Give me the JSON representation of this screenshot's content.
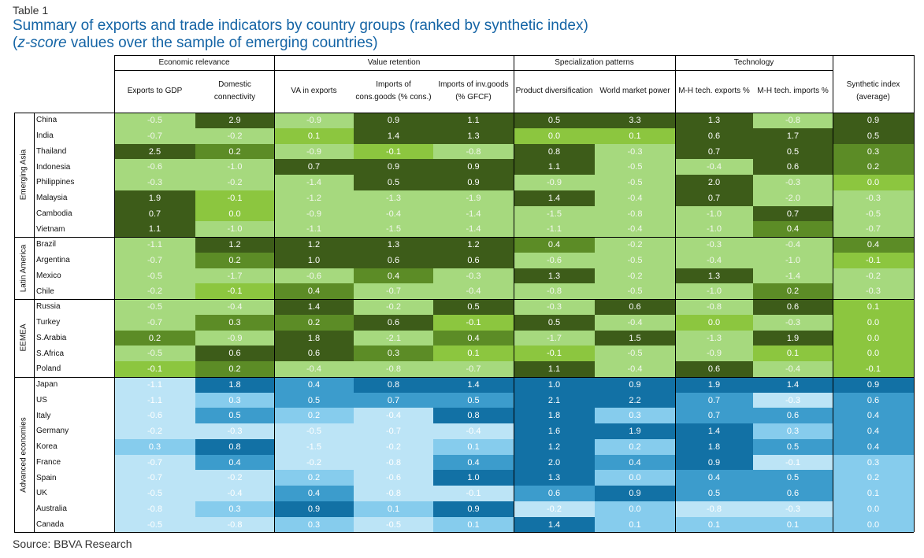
{
  "caption": "Table 1",
  "title_line1": "Summary of exports and trade indicators by country groups (ranked by synthetic index)",
  "title_line2_italic": "z-score",
  "title_line2_rest": " values over the sample of emerging countries)",
  "title_line2_open": "(",
  "source": "Source: BBVA Research",
  "column_groups": [
    "Economic relevance",
    "Value retention",
    "Specialization patterns",
    "Technology"
  ],
  "columns": [
    "Exports to GDP",
    "Domestic connectivity",
    "VA in exports",
    "Imports of cons.goods (% cons.)",
    "Imports of inv.goods (% GFCF)",
    "Product diversification",
    "World market power",
    "M-H tech. exports %",
    "M-H tech. imports %",
    "Synthetic index (average)"
  ],
  "regions": [
    {
      "name": "Emerging Asia",
      "palette": "green",
      "rows": [
        {
          "country": "China",
          "values": [
            "-0.5",
            "2.9",
            "-0.9",
            "0.9",
            "1.1",
            "0.5",
            "3.3",
            "1.3",
            "-0.8",
            "0.9"
          ]
        },
        {
          "country": "India",
          "values": [
            "-0.7",
            "-0.2",
            "0.1",
            "1.4",
            "1.3",
            "0.0",
            "0.1",
            "0.6",
            "1.7",
            "0.5"
          ]
        },
        {
          "country": "Thailand",
          "values": [
            "2.5",
            "0.2",
            "-0.9",
            "-0.1",
            "-0.8",
            "0.8",
            "-0.3",
            "0.7",
            "0.5",
            "0.3"
          ]
        },
        {
          "country": "Indonesia",
          "values": [
            "-0.6",
            "-1.0",
            "0.7",
            "0.9",
            "0.9",
            "1.1",
            "-0.5",
            "-0.4",
            "0.6",
            "0.2"
          ]
        },
        {
          "country": "Philippines",
          "values": [
            "-0.3",
            "-0.2",
            "-1.4",
            "0.5",
            "0.9",
            "-0.9",
            "-0.5",
            "2.0",
            "-0.3",
            "0.0"
          ]
        },
        {
          "country": "Malaysia",
          "values": [
            "1.9",
            "-0.1",
            "-1.2",
            "-1.3",
            "-1.9",
            "1.4",
            "-0.4",
            "0.7",
            "-2.0",
            "-0.3"
          ]
        },
        {
          "country": "Cambodia",
          "values": [
            "0.7",
            "0.0",
            "-0.9",
            "-0.4",
            "-1.4",
            "-1.5",
            "-0.8",
            "-1.0",
            "0.7",
            "-0.5"
          ]
        },
        {
          "country": "Vietnam",
          "values": [
            "1.1",
            "-1.0",
            "-1.1",
            "-1.5",
            "-1.4",
            "-1.1",
            "-0.4",
            "-1.0",
            "0.4",
            "-0.7"
          ]
        }
      ]
    },
    {
      "name": "Latin America",
      "palette": "green",
      "rows": [
        {
          "country": "Brazil",
          "values": [
            "-1.1",
            "1.2",
            "1.2",
            "1.3",
            "1.2",
            "0.4",
            "-0.2",
            "-0.3",
            "-0.4",
            "0.4"
          ]
        },
        {
          "country": "Argentina",
          "values": [
            "-0.7",
            "0.2",
            "1.0",
            "0.6",
            "0.6",
            "-0.6",
            "-0.5",
            "-0.4",
            "-1.0",
            "-0.1"
          ]
        },
        {
          "country": "Mexico",
          "values": [
            "-0.5",
            "-1.7",
            "-0.6",
            "0.4",
            "-0.3",
            "1.3",
            "-0.2",
            "1.3",
            "-1.4",
            "-0.2"
          ]
        },
        {
          "country": "Chile",
          "values": [
            "-0.2",
            "-0.1",
            "0.4",
            "-0.7",
            "-0.4",
            "-0.8",
            "-0.5",
            "-1.0",
            "0.2",
            "-0.3"
          ]
        }
      ]
    },
    {
      "name": "EEMEA",
      "palette": "green",
      "rows": [
        {
          "country": "Russia",
          "values": [
            "-0.5",
            "-0.4",
            "1.4",
            "-0.2",
            "0.5",
            "-0.3",
            "0.6",
            "-0.8",
            "0.6",
            "0.1"
          ]
        },
        {
          "country": "Turkey",
          "values": [
            "-0.7",
            "0.3",
            "0.2",
            "0.6",
            "-0.1",
            "0.5",
            "-0.4",
            "0.0",
            "-0.3",
            "0.0"
          ]
        },
        {
          "country": "S.Arabia",
          "values": [
            "0.2",
            "-0.9",
            "1.8",
            "-2.1",
            "0.4",
            "-1.7",
            "1.5",
            "-1.3",
            "1.9",
            "0.0"
          ]
        },
        {
          "country": "S.Africa",
          "values": [
            "-0.5",
            "0.6",
            "0.6",
            "0.3",
            "0.1",
            "-0.1",
            "-0.5",
            "-0.9",
            "0.1",
            "0.0"
          ]
        },
        {
          "country": "Poland",
          "values": [
            "-0.1",
            "0.2",
            "-0.4",
            "-0.8",
            "-0.7",
            "1.1",
            "-0.4",
            "0.6",
            "-0.4",
            "-0.1"
          ]
        }
      ]
    },
    {
      "name": "Advanced economies",
      "palette": "blue",
      "rows": [
        {
          "country": "Japan",
          "values": [
            "-1.1",
            "1.8",
            "0.4",
            "0.8",
            "1.4",
            "1.0",
            "0.9",
            "1.9",
            "1.4",
            "0.9"
          ]
        },
        {
          "country": "US",
          "values": [
            "-1.1",
            "0.3",
            "0.5",
            "0.7",
            "0.5",
            "2.1",
            "2.2",
            "0.7",
            "-0.3",
            "0.6"
          ]
        },
        {
          "country": "Italy",
          "values": [
            "-0.6",
            "0.5",
            "0.2",
            "-0.4",
            "0.8",
            "1.8",
            "0.3",
            "0.7",
            "0.6",
            "0.4"
          ]
        },
        {
          "country": "Germany",
          "values": [
            "-0.2",
            "-0.3",
            "-0.5",
            "-0.7",
            "-0.4",
            "1.6",
            "1.9",
            "1.4",
            "0.3",
            "0.4"
          ]
        },
        {
          "country": "Korea",
          "values": [
            "0.3",
            "0.8",
            "-1.5",
            "-0.2",
            "0.1",
            "1.2",
            "0.2",
            "1.8",
            "0.5",
            "0.4"
          ]
        },
        {
          "country": "France",
          "values": [
            "-0.7",
            "0.4",
            "-0.2",
            "-0.8",
            "0.4",
            "2.0",
            "0.4",
            "0.9",
            "-0.1",
            "0.3"
          ]
        },
        {
          "country": "Spain",
          "values": [
            "-0.7",
            "-0.2",
            "0.2",
            "-0.6",
            "1.0",
            "1.3",
            "0.0",
            "0.4",
            "0.5",
            "0.2"
          ]
        },
        {
          "country": "UK",
          "values": [
            "-0.5",
            "-0.4",
            "0.4",
            "-0.8",
            "-0.1",
            "0.6",
            "0.9",
            "0.5",
            "0.6",
            "0.1"
          ]
        },
        {
          "country": "Australia",
          "values": [
            "-0.8",
            "0.3",
            "0.9",
            "0.1",
            "0.9",
            "-0.2",
            "0.0",
            "-0.8",
            "-0.3",
            "0.0"
          ]
        },
        {
          "country": "Canada",
          "values": [
            "-0.5",
            "-0.8",
            "0.3",
            "-0.5",
            "0.1",
            "1.4",
            "0.1",
            "0.1",
            "0.1",
            "0.0"
          ]
        }
      ]
    }
  ],
  "colors": {
    "green": [
      "#a6d97e",
      "#8cc63f",
      "#5c8c26",
      "#3d5c19"
    ],
    "blue": [
      "#bce4f6",
      "#86cced",
      "#3c9ccc",
      "#1271a5"
    ],
    "green_text_dark": "#111111",
    "light_text": "#ffffff",
    "title": "#1464a5"
  }
}
